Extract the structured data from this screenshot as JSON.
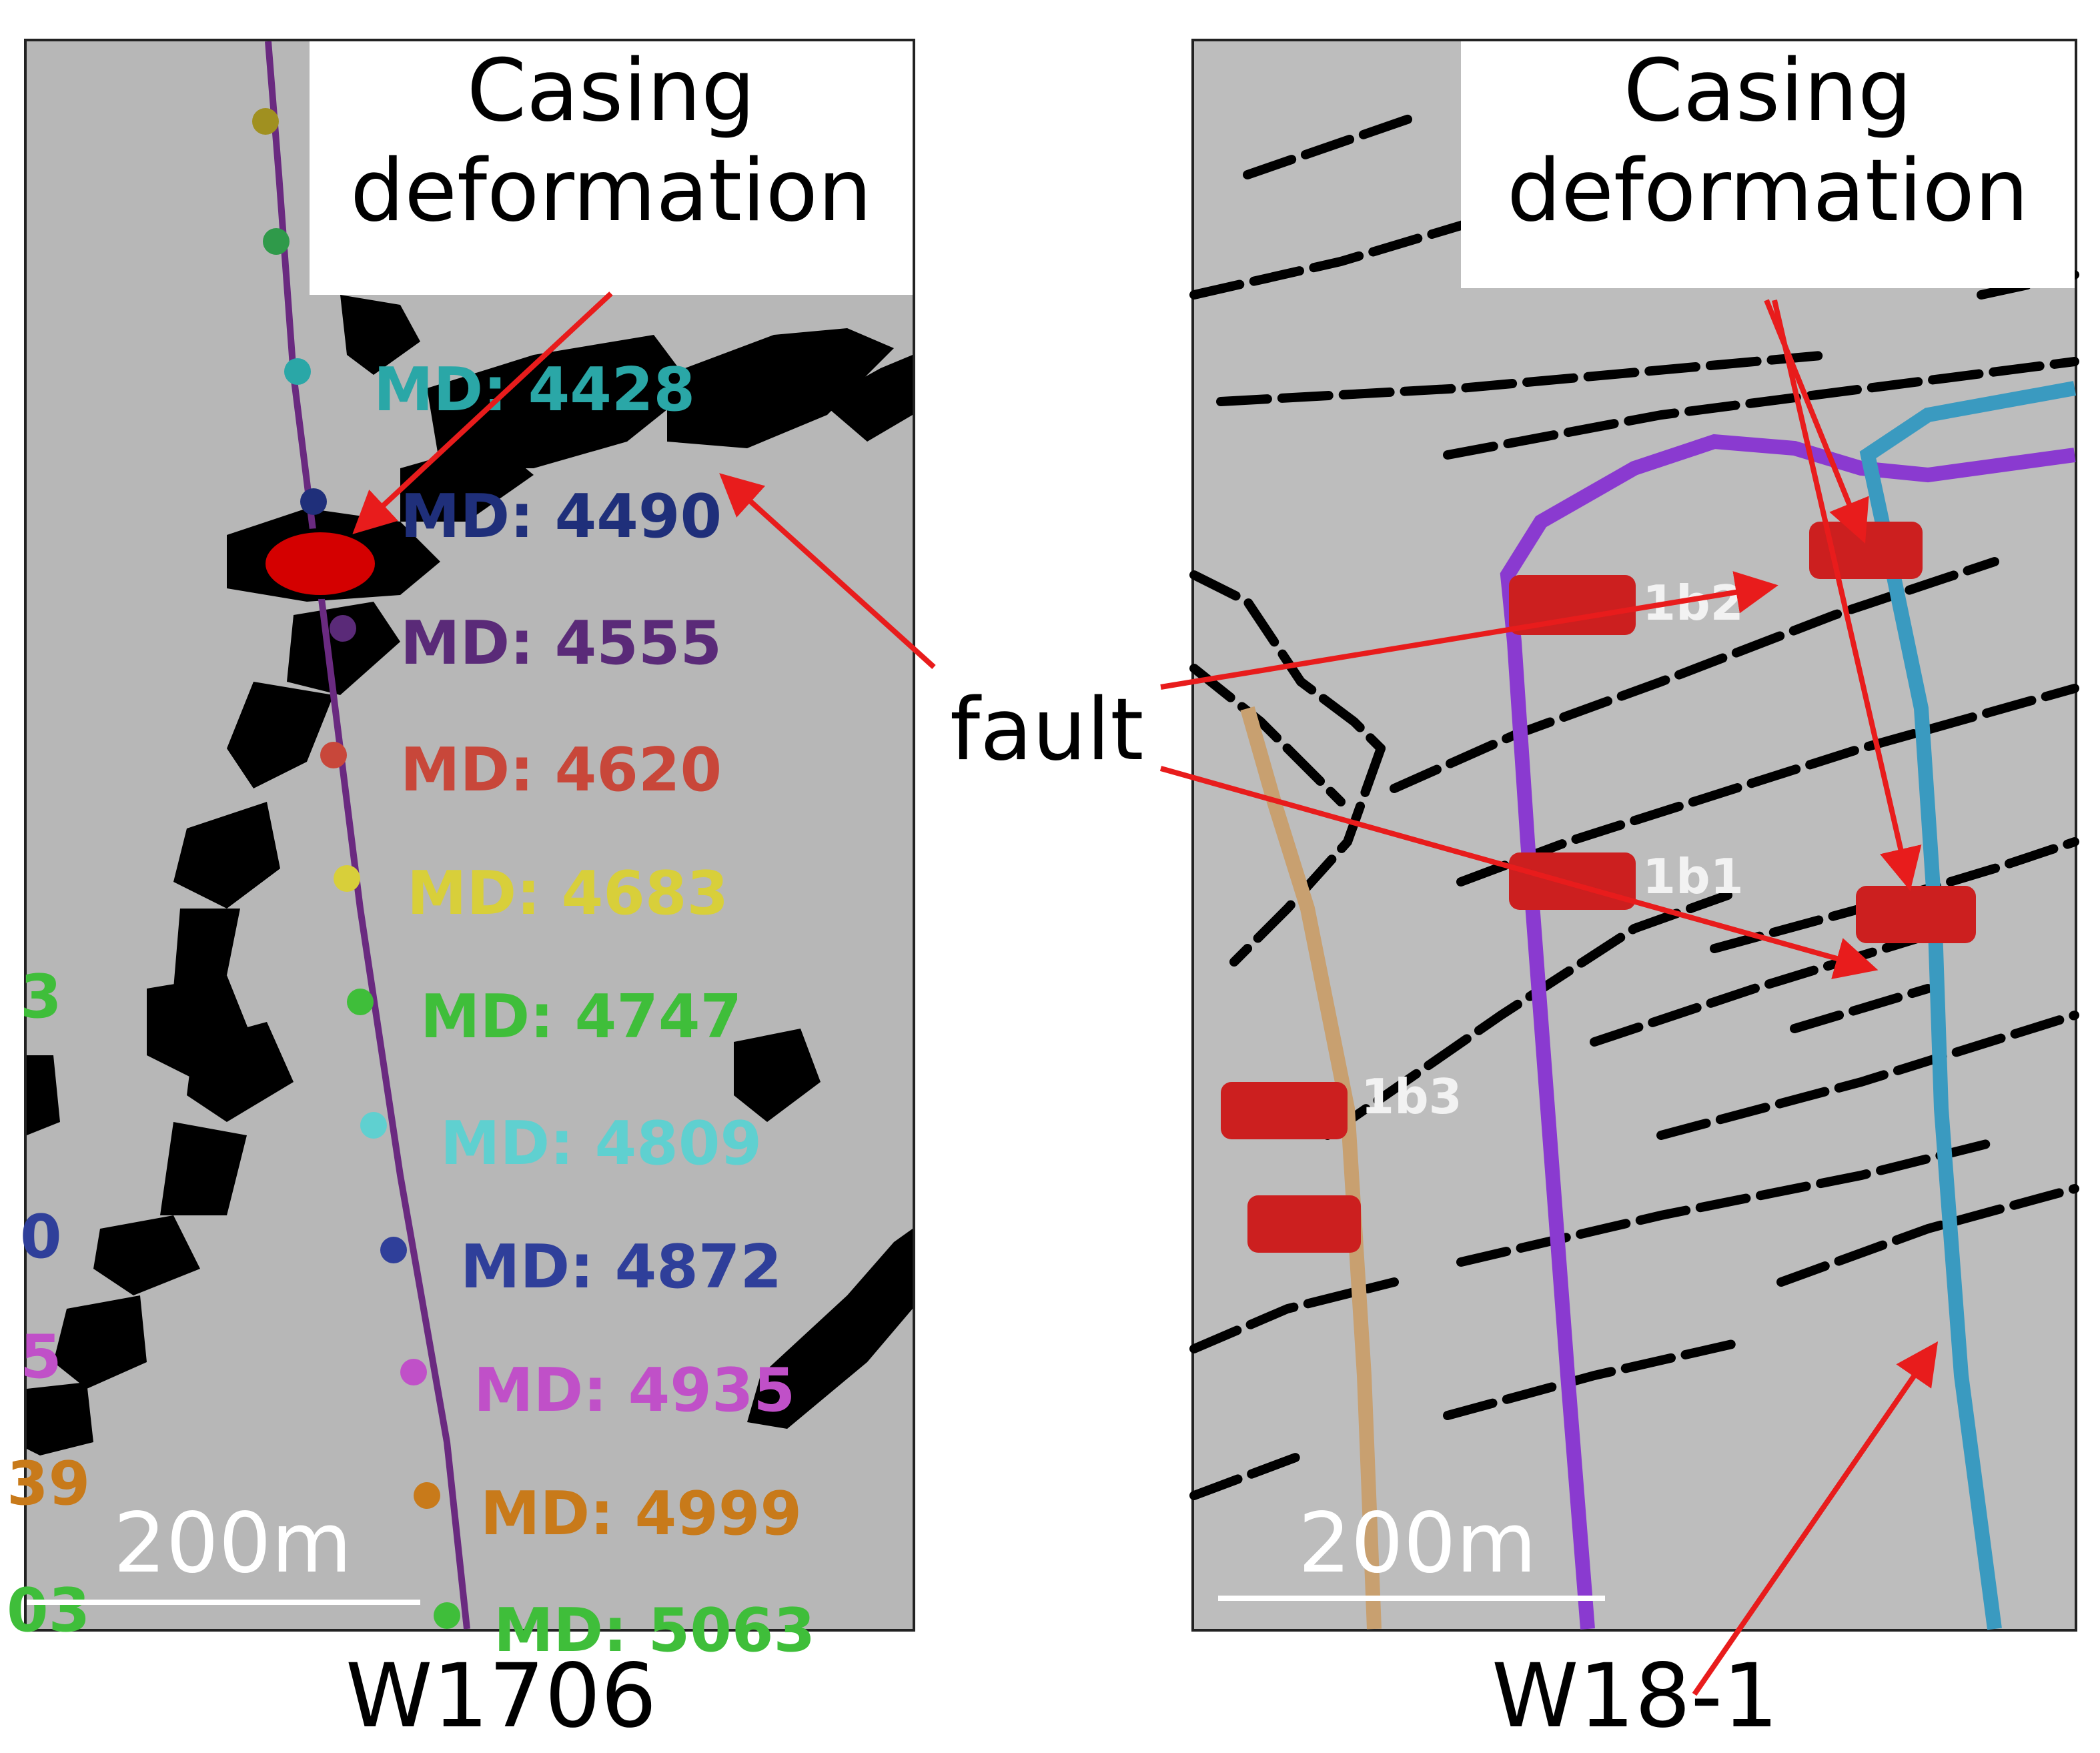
{
  "left_panel": {
    "callout": [
      "Casing",
      "deformation"
    ],
    "scale_label": "200m",
    "well_name": "W1706",
    "md_labels": [
      {
        "text": "MD: 4428",
        "color": "#2aa7a7"
      },
      {
        "text": "MD: 4490",
        "color": "#1f2f7a"
      },
      {
        "text": "MD: 4555",
        "color": "#5a2a78"
      },
      {
        "text": "MD: 4620",
        "color": "#c8473a"
      },
      {
        "text": "MD: 4683",
        "color": "#d8cf3a"
      },
      {
        "text": "MD: 4747",
        "color": "#3fbe3a"
      },
      {
        "text": "MD: 4809",
        "color": "#5fd0d0"
      },
      {
        "text": "MD: 4872",
        "color": "#2f3f9a"
      },
      {
        "text": "MD: 4935",
        "color": "#c050c8"
      },
      {
        "text": "MD: 4999",
        "color": "#c87a1a"
      },
      {
        "text": "MD: 5063",
        "color": "#3fbe3a"
      }
    ],
    "edge_labels": [
      {
        "text": "3",
        "color": "#3fbe3a"
      },
      {
        "text": "0",
        "color": "#2f3f9a"
      },
      {
        "text": "5",
        "color": "#c050c8"
      },
      {
        "text": "39",
        "color": "#c87a1a"
      },
      {
        "text": "03",
        "color": "#3fbe3a"
      }
    ]
  },
  "right_panel": {
    "callout": [
      "Casing",
      "deformation"
    ],
    "scale_label": "200m",
    "well_name": "W18-1",
    "marker_tags": [
      "1b2",
      "1b1",
      "1b3"
    ]
  },
  "fault_label": "fault",
  "colors": {
    "arrow": "#e81c1c",
    "deformation_marker": "#d40000",
    "fault_trace": "#000000",
    "left_well_trajectory": "#6a2a80",
    "right_well_purple": "#8a3ad0",
    "right_well_blue": "#3a9ac0",
    "right_well_tan": "#c8a070",
    "panel_background": "#b7b7b7"
  }
}
